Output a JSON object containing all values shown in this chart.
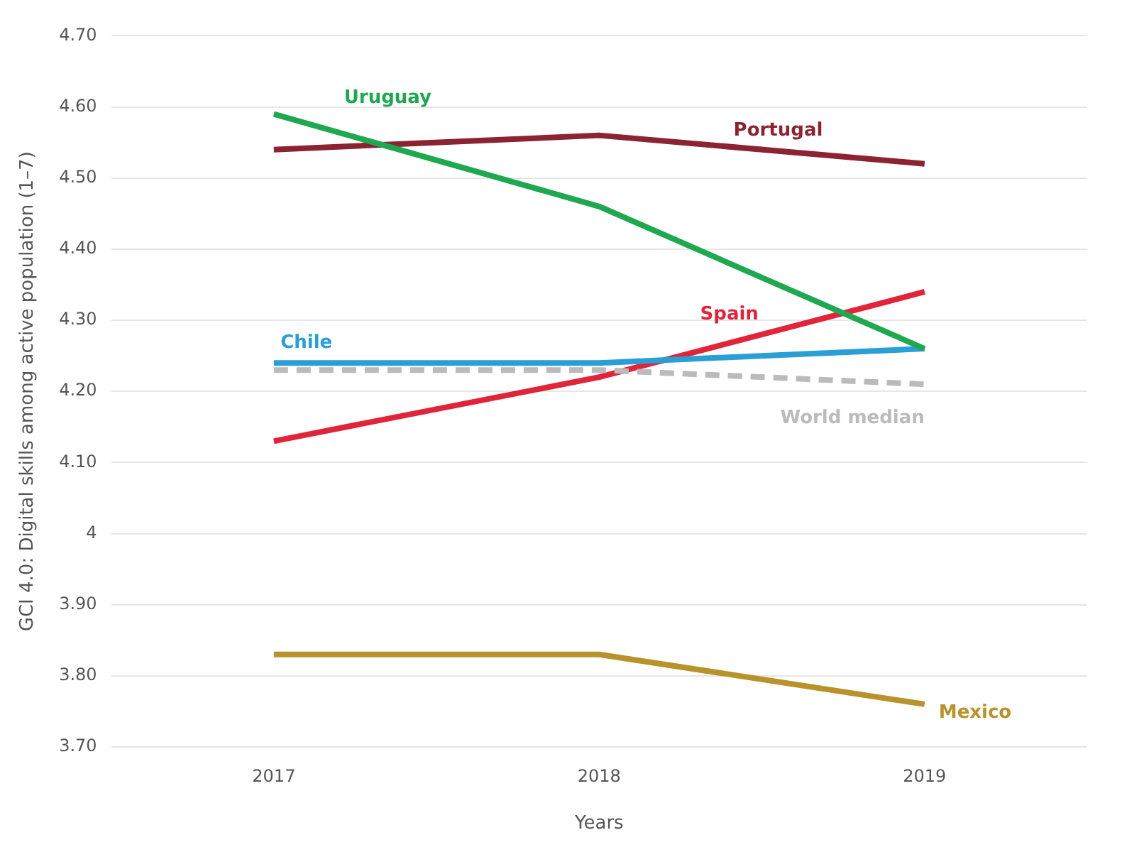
{
  "chart_data": {
    "type": "line",
    "xlabel": "Years",
    "ylabel": "GCI 4.0: Digital skills among active population (1–7)",
    "categories": [
      "2017",
      "2018",
      "2019"
    ],
    "series": [
      {
        "name": "Uruguay",
        "color": "#1fa84f",
        "values": [
          4.59,
          4.46,
          4.26
        ]
      },
      {
        "name": "Portugal",
        "color": "#8b2332",
        "values": [
          4.54,
          4.56,
          4.52
        ]
      },
      {
        "name": "Chile",
        "color": "#2a9fd6",
        "values": [
          4.24,
          4.24,
          4.26
        ]
      },
      {
        "name": "World median",
        "color": "#bbbbbb",
        "values": [
          4.23,
          4.23,
          4.21
        ],
        "line_style": "dashed"
      },
      {
        "name": "Spain",
        "color": "#e0243a",
        "values": [
          4.13,
          4.22,
          4.34
        ]
      },
      {
        "name": "Mexico",
        "color": "#b8922a",
        "values": [
          3.83,
          3.83,
          3.76
        ]
      }
    ],
    "ylim": [
      3.7,
      4.7
    ],
    "yticks": [
      {
        "value": 3.7,
        "label": "3.70"
      },
      {
        "value": 3.8,
        "label": "3.80"
      },
      {
        "value": 3.9,
        "label": "3.90"
      },
      4,
      {
        "value": 4.1,
        "label": "4.10"
      },
      {
        "value": 4.2,
        "label": "4.20"
      },
      {
        "value": 4.3,
        "label": "4.30"
      },
      {
        "value": 4.4,
        "label": "4.40"
      },
      {
        "value": 4.5,
        "label": "4.50"
      },
      {
        "value": 4.6,
        "label": "4.60"
      },
      {
        "value": 4.7,
        "label": "4.70"
      }
    ],
    "grid": "y",
    "legend": false,
    "marker": "none"
  }
}
